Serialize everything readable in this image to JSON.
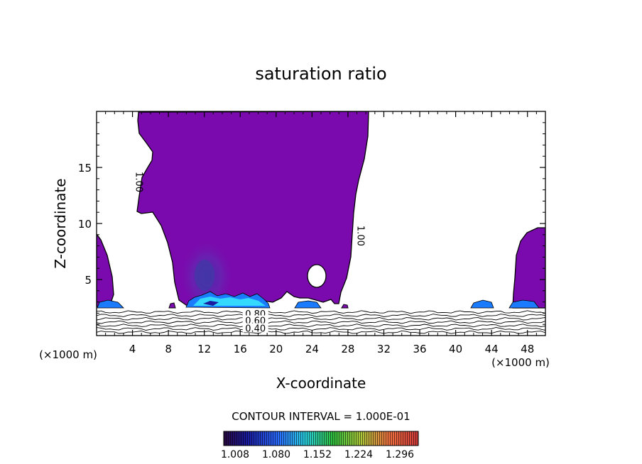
{
  "chart_data": {
    "type": "heatmap",
    "title": "saturation ratio",
    "xlabel": "X-coordinate",
    "ylabel": "Z-coordinate",
    "x_unit_left": "(×1000 m)",
    "x_unit_right": "(×1000 m)",
    "xlim": [
      0,
      50
    ],
    "ylim": [
      0,
      20
    ],
    "x_ticks": [
      4,
      8,
      12,
      16,
      20,
      24,
      28,
      32,
      36,
      40,
      44,
      48
    ],
    "y_ticks": [
      5,
      10,
      15
    ],
    "contour_interval_text": "CONTOUR INTERVAL = 1.000E-01",
    "contour_labels": [
      {
        "text": "1.00",
        "x": 4.7,
        "z": 13.7,
        "rotate": 90
      },
      {
        "text": "1.00",
        "x": 29.4,
        "z": 8.9,
        "rotate": 90
      },
      {
        "text": "0.80",
        "x": 17.7,
        "z": 1.9,
        "rotate": 0
      },
      {
        "text": "0.60",
        "x": 17.7,
        "z": 1.3,
        "rotate": 0
      },
      {
        "text": "0.40",
        "x": 17.7,
        "z": 0.6,
        "rotate": 0
      }
    ],
    "colorbar": {
      "ticks": [
        "1.008",
        "1.080",
        "1.152",
        "1.224",
        "1.296"
      ],
      "range": [
        1.0,
        1.32
      ]
    },
    "regions": {
      "saturated_value": 1.01,
      "main_cloud_x": [
        4.6,
        30.2
      ],
      "main_cloud_z": [
        2.2,
        19.9
      ],
      "left_edge_cloud_x": [
        0,
        1.3
      ],
      "right_cloud_x": [
        46.9,
        50
      ],
      "high_ratio_core_center": [
        12.0,
        5.2
      ],
      "high_ratio_core_max": 1.05,
      "peak_layer_z": 2.7,
      "subsaturated_isolines_z": [
        0.3,
        0.6,
        0.9,
        1.2,
        1.5,
        1.8,
        2.1
      ]
    },
    "grid": false,
    "legend": "colorbar below plot"
  }
}
